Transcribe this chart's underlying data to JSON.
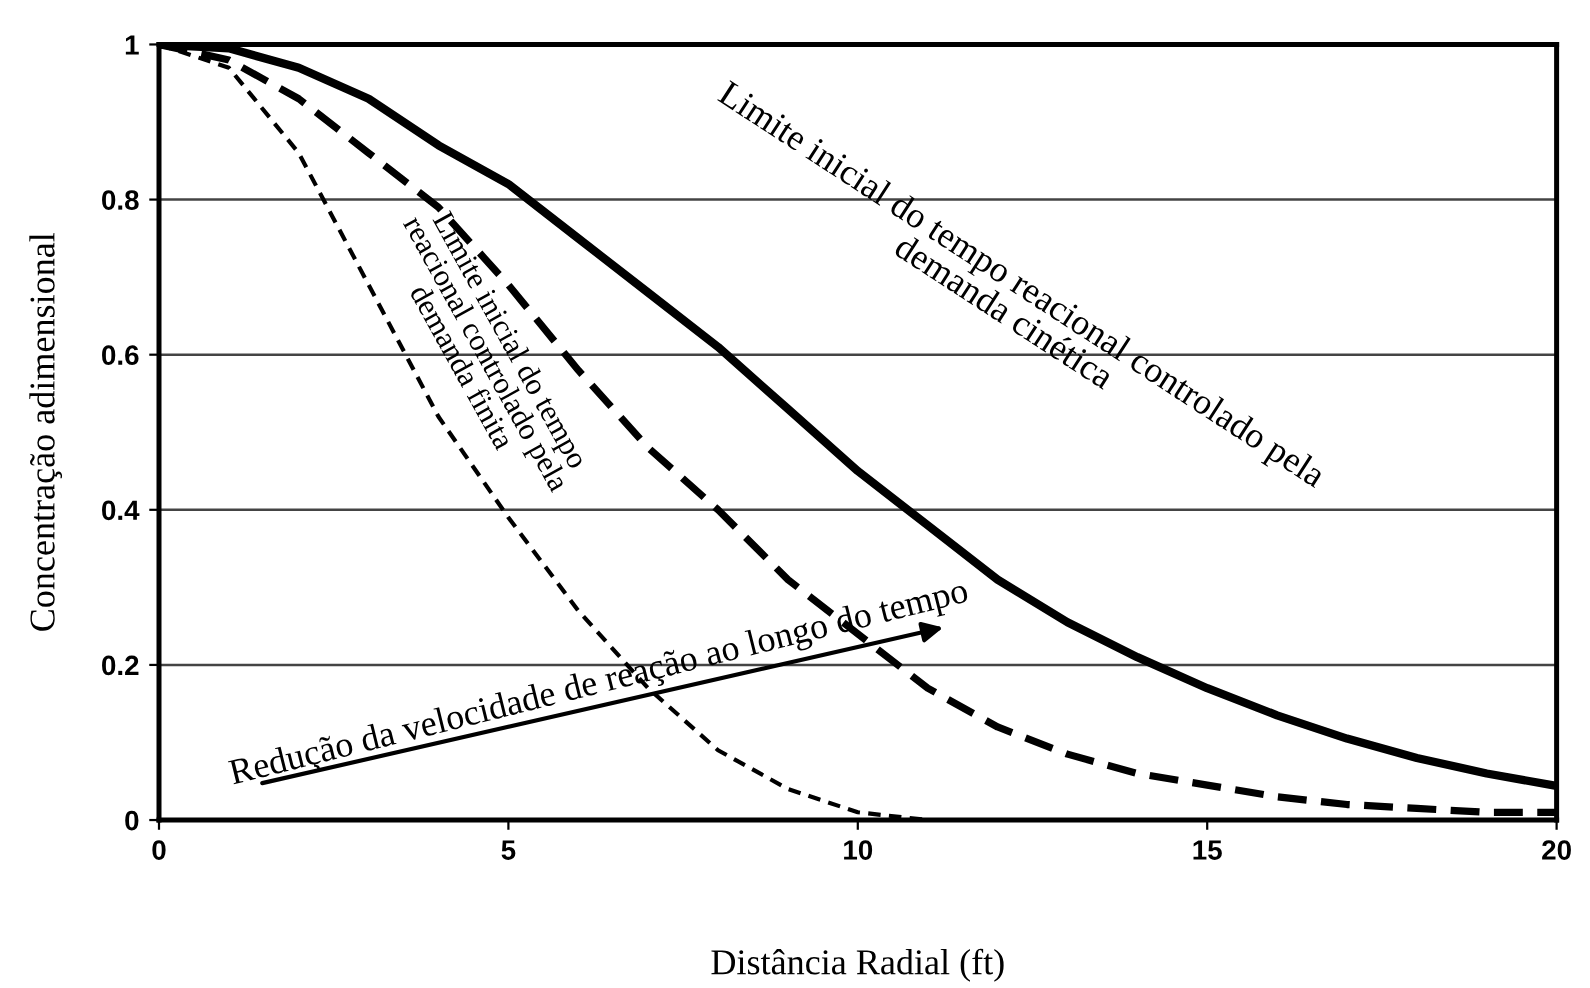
{
  "chart_data": {
    "type": "line",
    "xlabel": "Distância Radial (ft)",
    "ylabel": "Concentração adimensional",
    "x": [
      0,
      1,
      2,
      3,
      4,
      5,
      6,
      7,
      8,
      9,
      10,
      11,
      12,
      13,
      14,
      15,
      16,
      17,
      18,
      19,
      20
    ],
    "series": [
      {
        "color": "#000000",
        "line_style": "solid",
        "values": [
          1,
          0.995,
          0.97,
          0.93,
          0.87,
          0.82,
          0.75,
          0.68,
          0.61,
          0.53,
          0.45,
          0.38,
          0.31,
          0.255,
          0.21,
          0.17,
          0.135,
          0.105,
          0.08,
          0.06,
          0.044
        ]
      },
      {
        "color": "#000000",
        "line_style": "dashed",
        "values": [
          1,
          0.98,
          0.93,
          0.86,
          0.79,
          0.69,
          0.58,
          0.48,
          0.4,
          0.31,
          0.24,
          0.17,
          0.12,
          0.085,
          0.06,
          0.045,
          0.03,
          0.02,
          0.015,
          0.01,
          0.01
        ]
      },
      {
        "color": "#000000",
        "line_style": "dotted",
        "values": [
          1,
          0.97,
          0.86,
          0.69,
          0.52,
          0.39,
          0.27,
          0.17,
          0.09,
          0.04,
          0.01,
          0,
          0,
          0,
          0,
          0,
          0,
          0,
          0,
          0,
          0
        ]
      }
    ],
    "annotations": [
      "Limite inicial do tempo reacional controlado pela\ndemanda cinética",
      "Limite inicial do tempo\nreacional controlado pela\ndemanda finita",
      "Redução da velocidade de reação ao longo do tempo"
    ],
    "xlim": [
      0,
      20
    ],
    "xticks": [
      0,
      5,
      10,
      15,
      20
    ],
    "ylim": [
      0,
      1
    ],
    "yticks": [
      0,
      0.2,
      0.4,
      0.6,
      0.8,
      1
    ],
    "grid": "y",
    "marker": "none"
  }
}
